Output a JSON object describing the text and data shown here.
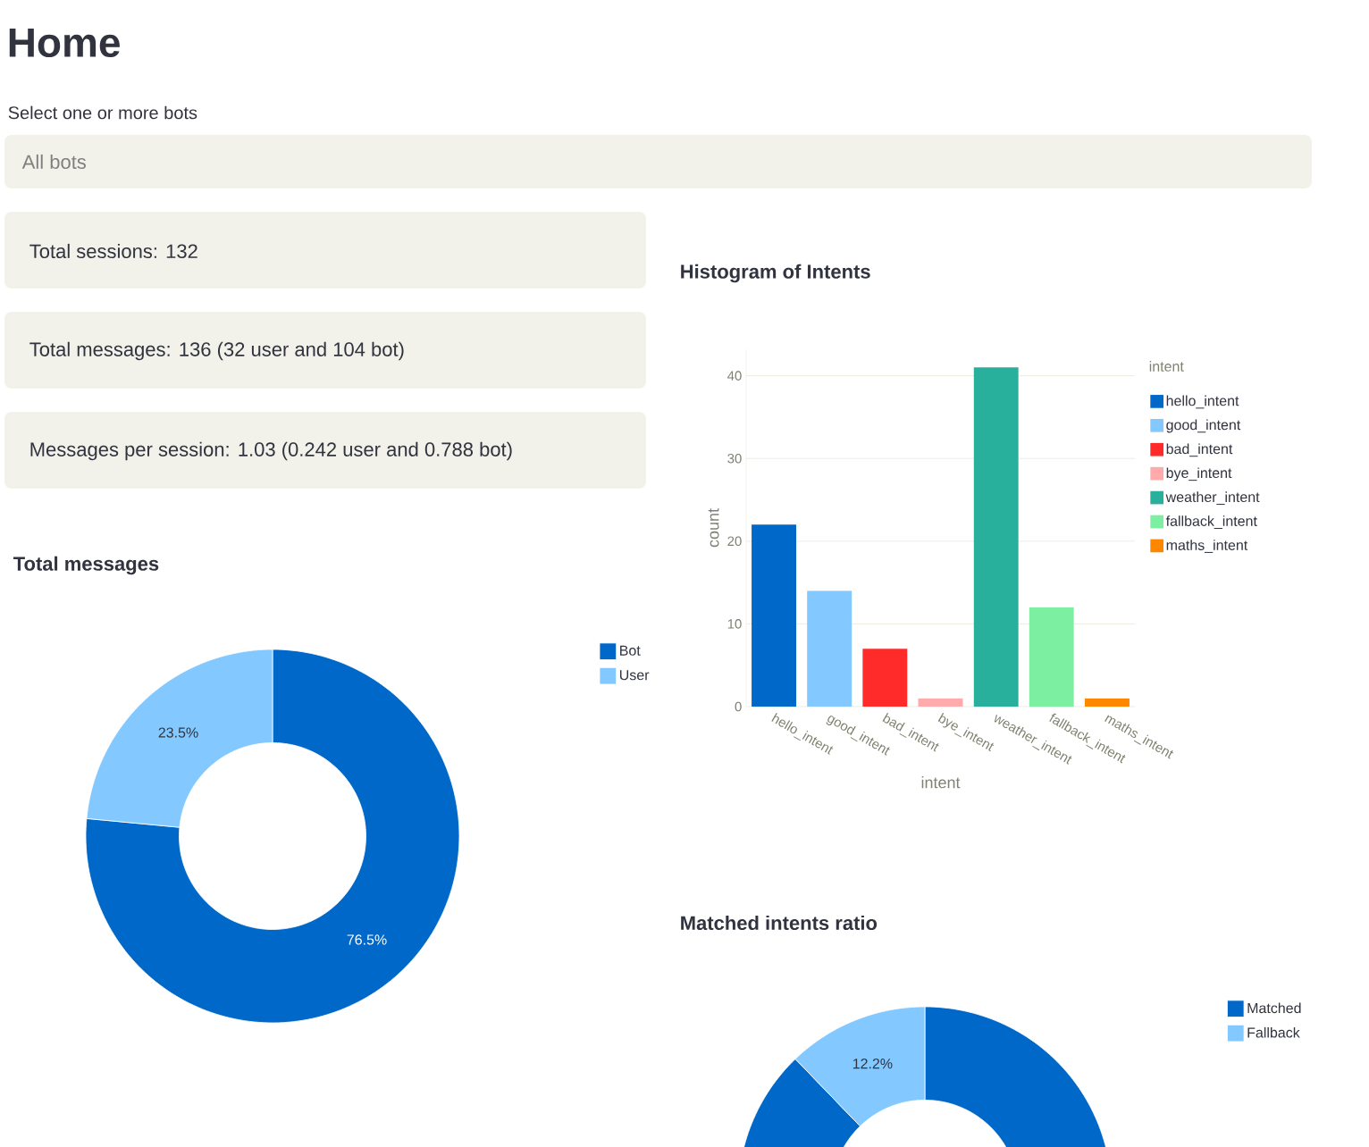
{
  "chart_data": [
    {
      "type": "other",
      "title": "Home",
      "annotations": [
        "Select one or more bots",
        "All bots",
        "Total sessions: 132",
        "Total messages: 136 (32 user and 104 bot)",
        "Messages per session: 1.03 (0.242 user and 0.788 bot)"
      ]
    },
    {
      "type": "donut",
      "title": "Total messages",
      "categories": [
        "Bot",
        "User"
      ],
      "values": [
        76.5,
        23.5
      ],
      "colors": [
        "#0068c9",
        "#83c9ff"
      ],
      "value_labels": [
        "76.5%",
        "23.5%"
      ],
      "legend": "top right"
    },
    {
      "type": "bar",
      "title": "Histogram of Intents",
      "categories": [
        "hello_intent",
        "good_intent",
        "bad_intent",
        "bye_intent",
        "weather_intent",
        "fallback_intent",
        "maths_intent"
      ],
      "xlabel": "intent",
      "ylabel": "count",
      "ylim": [
        0,
        43.2
      ],
      "yticks": [
        0,
        10,
        20,
        30,
        40
      ],
      "grid": "y",
      "legend": "top right",
      "legend_title": "intent",
      "series": [
        {
          "name": "hello_intent",
          "color": "#0068c9",
          "values": [
            22,
            null,
            null,
            null,
            null,
            null,
            null
          ]
        },
        {
          "name": "good_intent",
          "color": "#83c9ff",
          "values": [
            null,
            14,
            null,
            null,
            null,
            null,
            null
          ]
        },
        {
          "name": "bad_intent",
          "color": "#ff2b2b",
          "values": [
            null,
            null,
            7,
            null,
            null,
            null,
            null
          ]
        },
        {
          "name": "bye_intent",
          "color": "#ffabab",
          "values": [
            null,
            null,
            null,
            1,
            null,
            null,
            null
          ]
        },
        {
          "name": "weather_intent",
          "color": "#29b09d",
          "values": [
            null,
            null,
            null,
            null,
            41,
            null,
            null
          ]
        },
        {
          "name": "fallback_intent",
          "color": "#7defa1",
          "values": [
            null,
            null,
            null,
            null,
            null,
            12,
            null
          ]
        },
        {
          "name": "maths_intent",
          "color": "#ff8700",
          "values": [
            null,
            null,
            null,
            null,
            null,
            null,
            1
          ]
        }
      ]
    },
    {
      "type": "donut",
      "title": "Matched intents ratio",
      "categories": [
        "Matched",
        "Fallback"
      ],
      "values": [
        87.8,
        12.2
      ],
      "colors": [
        "#0068c9",
        "#83c9ff"
      ],
      "value_labels": [
        null,
        "12.2%"
      ],
      "legend": "top right"
    }
  ]
}
